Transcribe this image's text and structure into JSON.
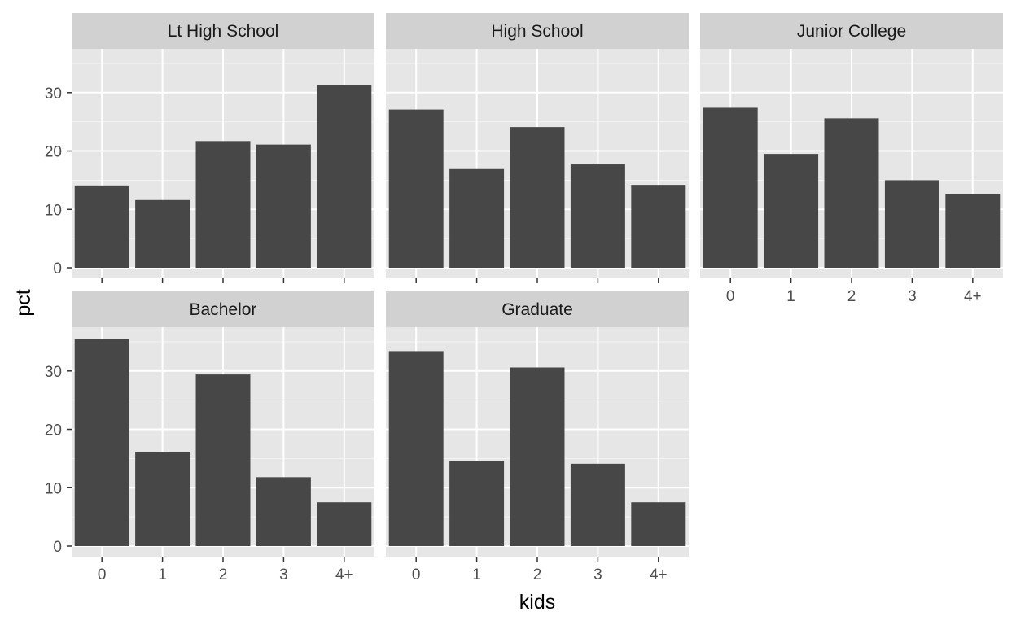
{
  "chart_data": {
    "type": "bar",
    "layout": "facet-wrap",
    "xlabel": "kids",
    "ylabel": "pct",
    "categories": [
      "0",
      "1",
      "2",
      "3",
      "4+"
    ],
    "ylim": [
      0,
      37.5
    ],
    "yticks": [
      0,
      10,
      20,
      30
    ],
    "grid": true,
    "colors": {
      "bar": "#474747",
      "panel": "#e6e6e6",
      "strip": "#d1d1d1",
      "gridline": "#ffffff"
    },
    "facets": [
      {
        "name": "Lt High School",
        "values": [
          14.1,
          11.6,
          21.7,
          21.1,
          31.3
        ]
      },
      {
        "name": "High School",
        "values": [
          27.1,
          16.9,
          24.1,
          17.7,
          14.2
        ]
      },
      {
        "name": "Junior College",
        "values": [
          27.4,
          19.5,
          25.6,
          15.0,
          12.6
        ]
      },
      {
        "name": "Bachelor",
        "values": [
          35.5,
          16.1,
          29.4,
          11.8,
          7.5
        ]
      },
      {
        "name": "Graduate",
        "values": [
          33.4,
          14.6,
          30.6,
          14.1,
          7.5
        ]
      }
    ]
  }
}
